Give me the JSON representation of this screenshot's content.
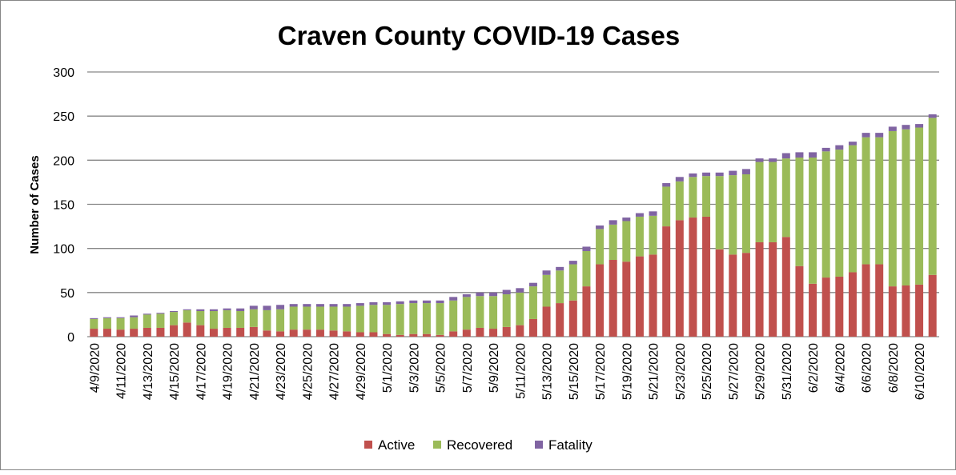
{
  "chart_data": {
    "type": "bar",
    "stacked": true,
    "title": "Craven County COVID-19 Cases",
    "xlabel": "",
    "ylabel": "Number of Cases",
    "ylim": [
      0,
      300
    ],
    "yticks": [
      0,
      50,
      100,
      150,
      200,
      250,
      300
    ],
    "grid": true,
    "legend_position": "bottom",
    "categories": [
      "4/9/2020",
      "4/10/2020",
      "4/11/2020",
      "4/12/2020",
      "4/13/2020",
      "4/14/2020",
      "4/15/2020",
      "4/16/2020",
      "4/17/2020",
      "4/18/2020",
      "4/19/2020",
      "4/20/2020",
      "4/21/2020",
      "4/22/2020",
      "4/23/2020",
      "4/24/2020",
      "4/25/2020",
      "4/26/2020",
      "4/27/2020",
      "4/28/2020",
      "4/29/2020",
      "4/30/2020",
      "5/1/2020",
      "5/2/2020",
      "5/3/2020",
      "5/4/2020",
      "5/5/2020",
      "5/6/2020",
      "5/7/2020",
      "5/8/2020",
      "5/9/2020",
      "5/10/2020",
      "5/11/2020",
      "5/12/2020",
      "5/13/2020",
      "5/14/2020",
      "5/15/2020",
      "5/16/2020",
      "5/17/2020",
      "5/18/2020",
      "5/19/2020",
      "5/20/2020",
      "5/21/2020",
      "5/22/2020",
      "5/23/2020",
      "5/24/2020",
      "5/25/2020",
      "5/26/2020",
      "5/27/2020",
      "5/28/2020",
      "5/29/2020",
      "5/30/2020",
      "5/31/2020",
      "6/1/2020",
      "6/2/2020",
      "6/3/2020",
      "6/4/2020",
      "6/5/2020",
      "6/6/2020",
      "6/7/2020",
      "6/8/2020",
      "6/9/2020",
      "6/10/2020",
      "6/11/2020"
    ],
    "series": [
      {
        "name": "Active",
        "color": "#C0504D",
        "values": [
          9,
          9,
          8,
          9,
          10,
          10,
          13,
          16,
          13,
          9,
          10,
          10,
          11,
          7,
          6,
          8,
          8,
          8,
          7,
          6,
          5,
          5,
          3,
          2,
          3,
          3,
          2,
          6,
          8,
          10,
          9,
          11,
          13,
          20,
          34,
          38,
          41,
          57,
          82,
          87,
          85,
          91,
          93,
          125,
          132,
          135,
          136,
          99,
          93,
          95,
          107,
          107,
          113,
          80,
          60,
          67,
          68,
          73,
          82,
          82,
          57,
          58,
          59,
          70
        ]
      },
      {
        "name": "Recovered",
        "color": "#9BBB59",
        "values": [
          11,
          12,
          13,
          13,
          15,
          16,
          15,
          14,
          16,
          20,
          20,
          19,
          20,
          23,
          25,
          26,
          26,
          26,
          27,
          28,
          30,
          31,
          33,
          35,
          35,
          35,
          36,
          35,
          37,
          36,
          37,
          37,
          37,
          37,
          36,
          37,
          41,
          40,
          40,
          40,
          46,
          45,
          44,
          45,
          44,
          46,
          46,
          83,
          90,
          89,
          91,
          91,
          89,
          123,
          143,
          143,
          144,
          144,
          144,
          144,
          176,
          177,
          178,
          178
        ]
      },
      {
        "name": "Fatality",
        "color": "#8064A2",
        "values": [
          1,
          1,
          1,
          2,
          1,
          1,
          1,
          1,
          2,
          2,
          2,
          3,
          4,
          5,
          5,
          3,
          3,
          3,
          3,
          3,
          3,
          3,
          3,
          3,
          3,
          3,
          3,
          4,
          3,
          4,
          4,
          5,
          5,
          4,
          5,
          4,
          4,
          5,
          4,
          5,
          4,
          4,
          5,
          4,
          5,
          4,
          4,
          4,
          5,
          6,
          4,
          4,
          6,
          6,
          6,
          4,
          5,
          4,
          5,
          5,
          5,
          5,
          4,
          4
        ]
      }
    ]
  }
}
